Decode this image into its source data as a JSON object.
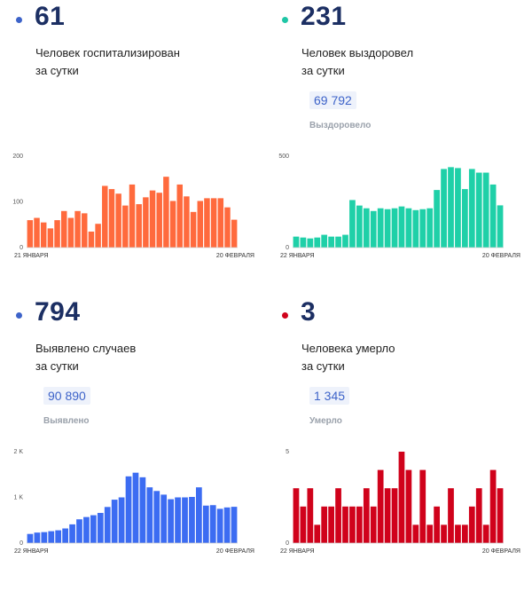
{
  "panels": [
    {
      "number": "61",
      "line1": "Человек госпитализирован",
      "line2": "за сутки",
      "total": "",
      "total_label": "",
      "color": "#ff6a3d",
      "dot_color": "#3d63c9"
    },
    {
      "number": "231",
      "line1": "Человек выздоровел",
      "line2": "за сутки",
      "total": "69 792",
      "total_label": "Выздоровело",
      "color": "#1fd0a8",
      "dot_color": "#1fc6a6"
    },
    {
      "number": "794",
      "line1": "Выявлено случаев",
      "line2": "за сутки",
      "total": "90 890",
      "total_label": "Выявлено",
      "color": "#3c6cf2",
      "dot_color": "#3d63c9"
    },
    {
      "number": "3",
      "line1": "Человека умерло",
      "line2": "за сутки",
      "total": "1 345",
      "total_label": "Умерло",
      "color": "#d0021b",
      "dot_color": "#d0021b"
    }
  ],
  "chart_data": [
    {
      "type": "bar",
      "title": "",
      "x_start_label": "21 ЯНВАРЯ",
      "x_end_label": "20 ФЕВРАЛЯ",
      "yticks": [
        "200",
        "100",
        "0"
      ],
      "ylim": [
        0,
        200
      ],
      "values": [
        60,
        65,
        55,
        42,
        60,
        80,
        65,
        80,
        75,
        35,
        52,
        135,
        128,
        118,
        92,
        138,
        95,
        110,
        125,
        120,
        155,
        102,
        138,
        112,
        78,
        102,
        108,
        108,
        108,
        88,
        61
      ]
    },
    {
      "type": "bar",
      "title": "",
      "x_start_label": "22 ЯНВАРЯ",
      "x_end_label": "20 ФЕВРАЛЯ",
      "yticks": [
        "500",
        "0"
      ],
      "ylim": [
        0,
        500
      ],
      "values": [
        60,
        55,
        50,
        55,
        70,
        60,
        60,
        70,
        260,
        230,
        215,
        200,
        215,
        210,
        215,
        225,
        215,
        205,
        210,
        215,
        315,
        430,
        440,
        435,
        320,
        430,
        410,
        410,
        345,
        231
      ]
    },
    {
      "type": "bar",
      "title": "",
      "x_start_label": "22 ЯНВАРЯ",
      "x_end_label": "20 ФЕВРАЛЯ",
      "yticks": [
        "2 K",
        "1 K",
        "0"
      ],
      "ylim": [
        0,
        2000
      ],
      "values": [
        200,
        230,
        240,
        260,
        280,
        320,
        410,
        520,
        570,
        610,
        660,
        790,
        950,
        1000,
        1460,
        1540,
        1440,
        1220,
        1140,
        1060,
        960,
        1000,
        1000,
        1010,
        1220,
        820,
        830,
        750,
        780,
        794
      ]
    },
    {
      "type": "bar",
      "title": "",
      "x_start_label": "22 ЯНВАРЯ",
      "x_end_label": "20 ФЕВРАЛЯ",
      "yticks": [
        "5",
        "0"
      ],
      "ylim": [
        0,
        5
      ],
      "values": [
        3,
        2,
        3,
        1,
        2,
        2,
        3,
        2,
        2,
        2,
        3,
        2,
        4,
        3,
        3,
        5,
        4,
        1,
        4,
        1,
        2,
        1,
        3,
        1,
        1,
        2,
        3,
        1,
        4,
        3
      ]
    }
  ]
}
